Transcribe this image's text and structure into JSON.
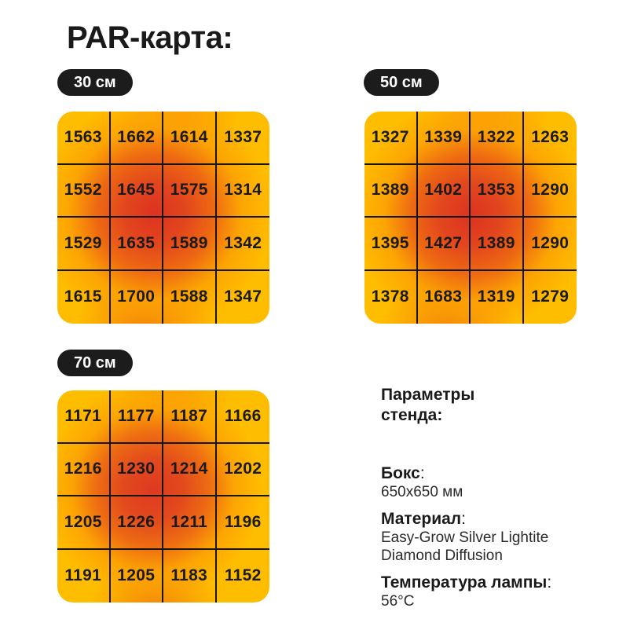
{
  "page_title": "PAR-карта:",
  "colors": {
    "background": "#ffffff",
    "text": "#1a1a1a",
    "badge_bg": "#1c1c1c",
    "badge_text": "#ffffff",
    "grid_line": "#161616",
    "heat_low": "#ffbd00",
    "heat_mid": "#ee6912",
    "heat_high": "#dd3221"
  },
  "chart_data": [
    {
      "type": "heatmap",
      "label": "30 см",
      "rows": 4,
      "cols": 4,
      "values": [
        [
          1563,
          1662,
          1614,
          1337
        ],
        [
          1552,
          1645,
          1575,
          1314
        ],
        [
          1529,
          1635,
          1589,
          1342
        ],
        [
          1615,
          1700,
          1588,
          1347
        ]
      ]
    },
    {
      "type": "heatmap",
      "label": "50 см",
      "rows": 4,
      "cols": 4,
      "values": [
        [
          1327,
          1339,
          1322,
          1263
        ],
        [
          1389,
          1402,
          1353,
          1290
        ],
        [
          1395,
          1427,
          1389,
          1290
        ],
        [
          1378,
          1683,
          1319,
          1279
        ]
      ]
    },
    {
      "type": "heatmap",
      "label": "70 см",
      "rows": 4,
      "cols": 4,
      "values": [
        [
          1171,
          1177,
          1187,
          1166
        ],
        [
          1216,
          1230,
          1214,
          1202
        ],
        [
          1205,
          1226,
          1211,
          1196
        ],
        [
          1191,
          1205,
          1183,
          1152
        ]
      ]
    }
  ],
  "stand_params": {
    "heading": "Параметры стенда:",
    "items": [
      {
        "label": "Бокс",
        "value": "650x650 мм"
      },
      {
        "label": "Материал",
        "value": "Easy-Grow Silver Lightite Diamond Diffusion"
      },
      {
        "label": "Температура лампы",
        "value": "56°C"
      }
    ]
  }
}
